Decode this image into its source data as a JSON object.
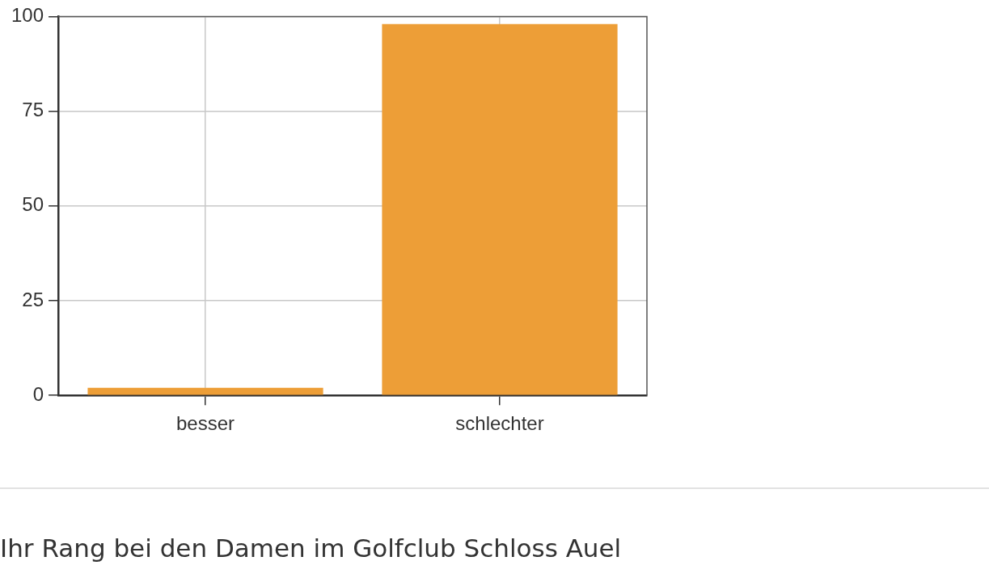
{
  "chart_data": {
    "type": "bar",
    "categories": [
      "besser",
      "schlechter"
    ],
    "values": [
      2,
      98
    ],
    "color": "#ed9e37",
    "ylim": [
      0,
      100
    ],
    "yticks": [
      0,
      25,
      50,
      75,
      100
    ],
    "grid": true,
    "annotations": [
      "Ihr Rang bei den Damen im Golfclub Schloss Auel"
    ]
  }
}
